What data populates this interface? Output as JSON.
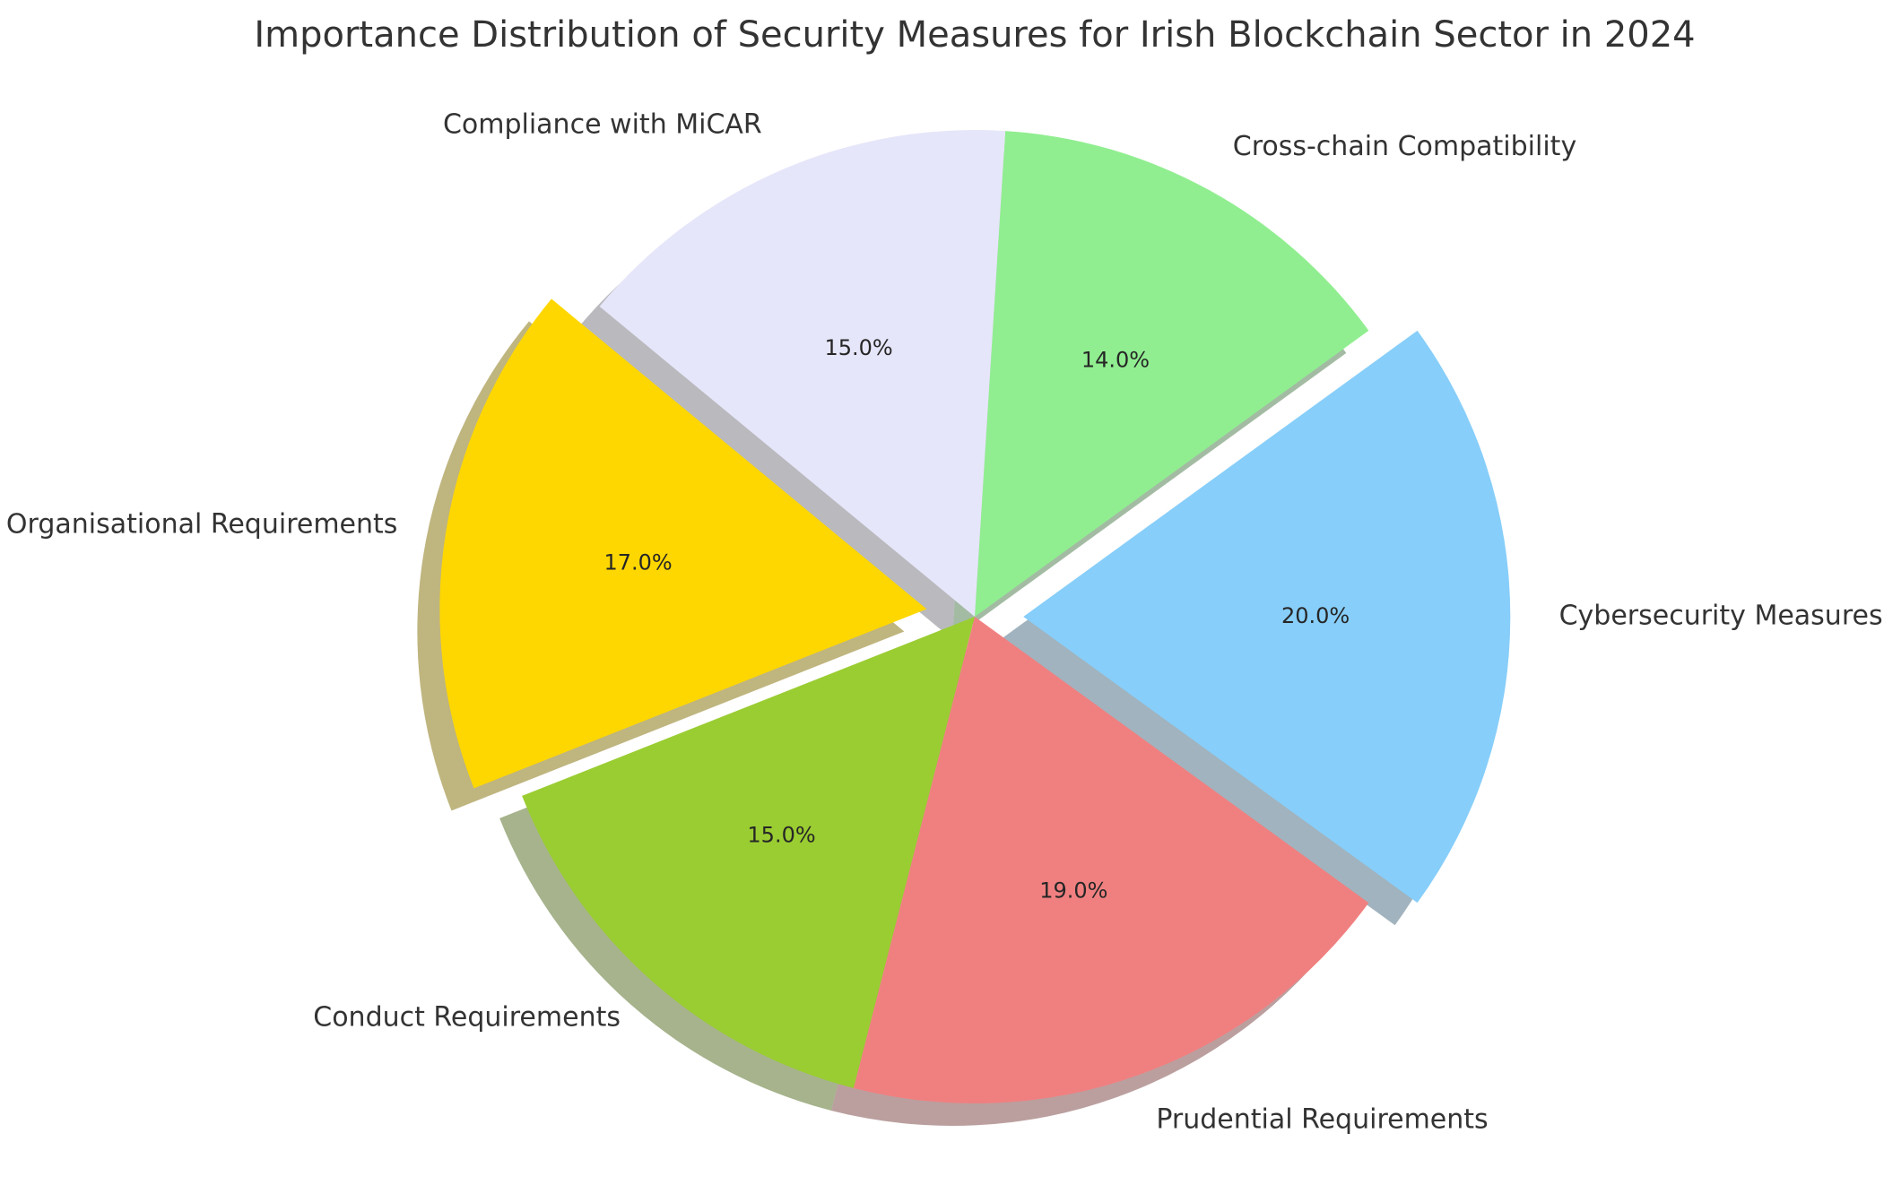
{
  "chart_data": {
    "type": "pie",
    "title": "Importance Distribution of Security Measures for Irish Blockchain Sector in 2024",
    "categories": [
      "Cybersecurity Measures",
      "Cross-chain Compatibility",
      "Compliance with MiCAR",
      "Organisational Requirements",
      "Conduct Requirements",
      "Prudential Requirements"
    ],
    "values": [
      20.0,
      14.0,
      15.0,
      17.0,
      15.0,
      19.0
    ],
    "value_labels": [
      "20.0%",
      "14.0%",
      "15.0%",
      "17.0%",
      "15.0%",
      "19.0%"
    ],
    "colors": [
      "#87CEFA",
      "#90EE90",
      "#E6E6FA",
      "#FFD700",
      "#9ACD32",
      "#F08080"
    ],
    "exploded": [
      "Cybersecurity Measures",
      "Organisational Requirements"
    ],
    "start_angle_deg": -36,
    "direction": "counterclockwise",
    "shadow": true,
    "legend": "none"
  }
}
